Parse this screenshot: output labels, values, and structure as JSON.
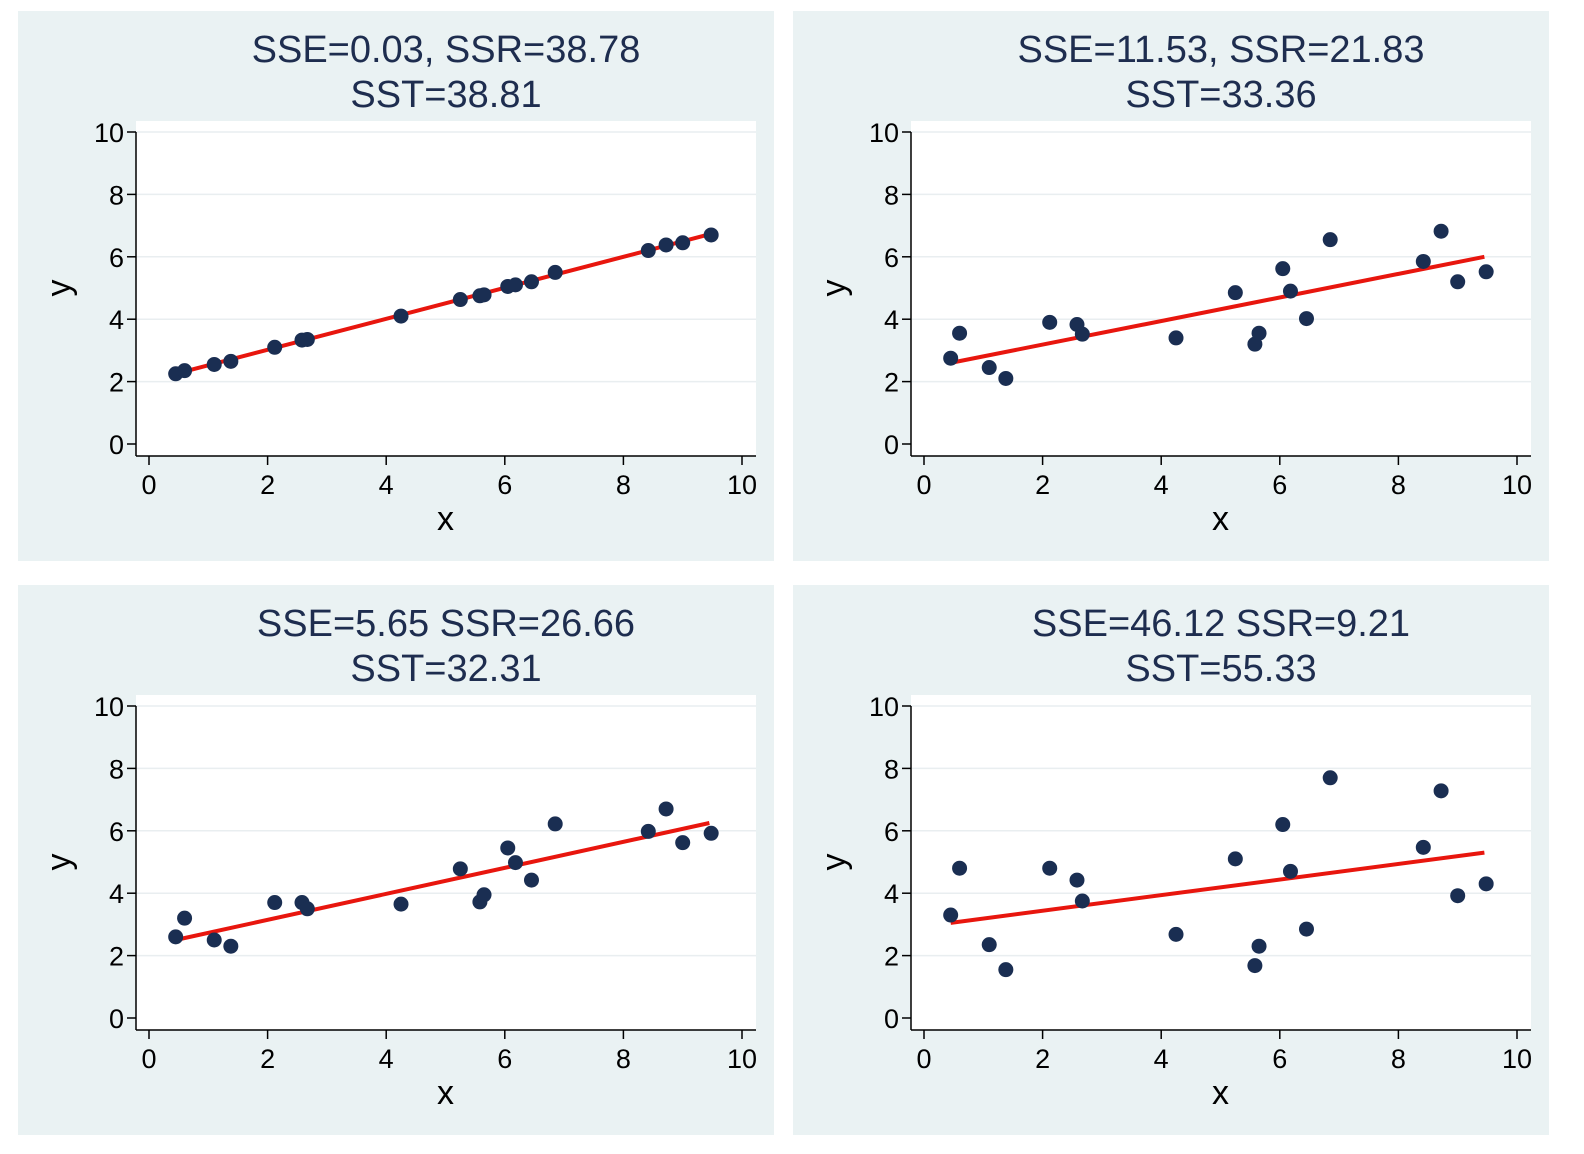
{
  "chart_data": [
    {
      "type": "scatter",
      "title_lines": [
        "SSE=0.03, SSR=38.78",
        "SST=38.81"
      ],
      "xlabel": "x",
      "ylabel": "y",
      "xlim": [
        0,
        10
      ],
      "ylim": [
        0,
        10
      ],
      "xticks": [
        0,
        2,
        4,
        6,
        8,
        10
      ],
      "yticks": [
        0,
        2,
        4,
        6,
        8,
        10
      ],
      "grid": "horizontal",
      "point_color": "#1a2e52",
      "line_color": "#e8160e",
      "fit_line": {
        "x": [
          0.45,
          9.45
        ],
        "y": [
          2.25,
          6.72
        ]
      },
      "points": {
        "x": [
          0.45,
          0.6,
          1.1,
          1.38,
          2.12,
          2.58,
          2.67,
          4.25,
          5.25,
          5.58,
          5.65,
          6.05,
          6.18,
          6.45,
          6.85,
          8.42,
          8.72,
          9.0,
          9.48
        ],
        "y": [
          2.25,
          2.35,
          2.55,
          2.65,
          3.1,
          3.33,
          3.35,
          4.1,
          4.63,
          4.75,
          4.78,
          5.05,
          5.1,
          5.2,
          5.5,
          6.2,
          6.38,
          6.45,
          6.7
        ]
      }
    },
    {
      "type": "scatter",
      "title_lines": [
        "SSE=11.53, SSR=21.83",
        "SST=33.36"
      ],
      "xlabel": "x",
      "ylabel": "y",
      "xlim": [
        0,
        10
      ],
      "ylim": [
        0,
        10
      ],
      "xticks": [
        0,
        2,
        4,
        6,
        8,
        10
      ],
      "yticks": [
        0,
        2,
        4,
        6,
        8,
        10
      ],
      "grid": "horizontal",
      "point_color": "#1a2e52",
      "line_color": "#e8160e",
      "fit_line": {
        "x": [
          0.45,
          9.45
        ],
        "y": [
          2.6,
          6.0
        ]
      },
      "points": {
        "x": [
          0.45,
          0.6,
          1.1,
          1.38,
          2.12,
          2.58,
          2.67,
          4.25,
          5.25,
          5.58,
          5.65,
          6.05,
          6.18,
          6.45,
          6.85,
          8.42,
          8.72,
          9.0,
          9.48
        ],
        "y": [
          2.75,
          3.55,
          2.45,
          2.1,
          3.9,
          3.83,
          3.52,
          3.4,
          4.85,
          3.2,
          3.55,
          5.62,
          4.9,
          4.02,
          6.55,
          5.85,
          6.82,
          5.2,
          5.52
        ]
      }
    },
    {
      "type": "scatter",
      "title_lines": [
        "SSE=5.65 SSR=26.66",
        "SST=32.31"
      ],
      "xlabel": "x",
      "ylabel": "y",
      "xlim": [
        0,
        10
      ],
      "ylim": [
        0,
        10
      ],
      "xticks": [
        0,
        2,
        4,
        6,
        8,
        10
      ],
      "yticks": [
        0,
        2,
        4,
        6,
        8,
        10
      ],
      "grid": "horizontal",
      "point_color": "#1a2e52",
      "line_color": "#e8160e",
      "fit_line": {
        "x": [
          0.45,
          9.45
        ],
        "y": [
          2.5,
          6.25
        ]
      },
      "points": {
        "x": [
          0.45,
          0.6,
          1.1,
          1.38,
          2.12,
          2.58,
          2.67,
          4.25,
          5.25,
          5.58,
          5.65,
          6.05,
          6.18,
          6.45,
          6.85,
          8.42,
          8.72,
          9.0,
          9.48
        ],
        "y": [
          2.6,
          3.2,
          2.5,
          2.3,
          3.7,
          3.7,
          3.5,
          3.65,
          4.78,
          3.72,
          3.95,
          5.45,
          4.98,
          4.42,
          6.22,
          5.98,
          6.7,
          5.62,
          5.92
        ]
      }
    },
    {
      "type": "scatter",
      "title_lines": [
        "SSE=46.12 SSR=9.21",
        "SST=55.33"
      ],
      "xlabel": "x",
      "ylabel": "y",
      "xlim": [
        0,
        10
      ],
      "ylim": [
        0,
        10
      ],
      "xticks": [
        0,
        2,
        4,
        6,
        8,
        10
      ],
      "yticks": [
        0,
        2,
        4,
        6,
        8,
        10
      ],
      "grid": "horizontal",
      "point_color": "#1a2e52",
      "line_color": "#e8160e",
      "fit_line": {
        "x": [
          0.45,
          9.45
        ],
        "y": [
          3.05,
          5.3
        ]
      },
      "points": {
        "x": [
          0.45,
          0.6,
          1.1,
          1.38,
          2.12,
          2.58,
          2.67,
          4.25,
          5.25,
          5.58,
          5.65,
          6.05,
          6.18,
          6.45,
          6.85,
          8.42,
          8.72,
          9.0,
          9.48
        ],
        "y": [
          3.3,
          4.8,
          2.35,
          1.55,
          4.8,
          4.42,
          3.75,
          2.68,
          5.1,
          1.68,
          2.3,
          6.2,
          4.7,
          2.85,
          7.7,
          5.47,
          7.28,
          3.92,
          4.3
        ]
      }
    }
  ]
}
